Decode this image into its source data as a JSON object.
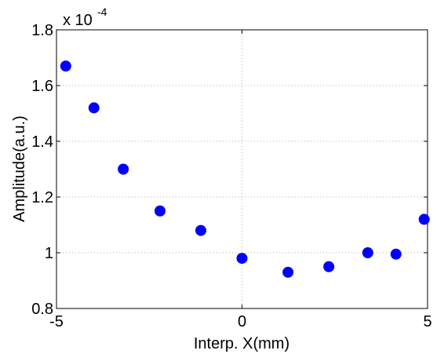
{
  "chart_data": {
    "type": "scatter",
    "x_label": "Interp. X(mm)",
    "y_label": "Amplitude(a.u.)",
    "y_scale_label": "x 10",
    "y_scale_exponent": "-4",
    "series": [
      {
        "color": "#0000ff",
        "x": [
          -4.75,
          -3.99,
          -3.2,
          -2.21,
          -1.11,
          0.0,
          1.24,
          2.34,
          3.39,
          4.15,
          4.91
        ],
        "values": [
          1.67,
          1.52,
          1.3,
          1.15,
          1.08,
          0.98,
          0.93,
          0.95,
          1.0,
          0.995,
          1.12
        ]
      }
    ],
    "xlim": [
      -5,
      5
    ],
    "xticks": [
      -5,
      0,
      5
    ],
    "ylim": [
      0.8,
      1.8
    ],
    "yticks": [
      0.8,
      1,
      1.2,
      1.4,
      1.6,
      1.8
    ],
    "grid": true
  }
}
